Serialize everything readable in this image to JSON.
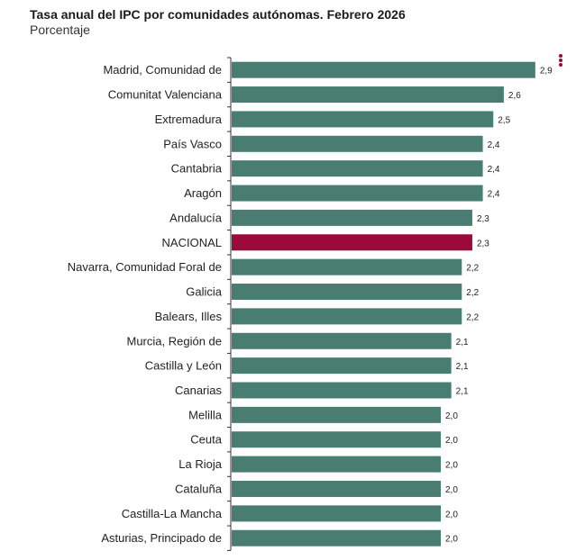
{
  "chart_data": {
    "type": "bar",
    "orientation": "horizontal",
    "title": "Tasa anual del IPC por comunidades autónomas. Febrero 2026",
    "subtitle": "Porcentaje",
    "categories": [
      "Madrid, Comunidad de",
      "Comunitat Valenciana",
      "Extremadura",
      "País Vasco",
      "Cantabria",
      "Aragón",
      "Andalucía",
      "NACIONAL",
      "Navarra, Comunidad Foral de",
      "Galicia",
      "Balears, Illes",
      "Murcia, Región de",
      "Castilla y León",
      "Canarias",
      "Melilla",
      "Ceuta",
      "La Rioja",
      "Cataluña",
      "Castilla-La Mancha",
      "Asturias, Principado de"
    ],
    "values": [
      2.9,
      2.6,
      2.5,
      2.4,
      2.4,
      2.4,
      2.3,
      2.3,
      2.2,
      2.2,
      2.2,
      2.1,
      2.1,
      2.1,
      2.0,
      2.0,
      2.0,
      2.0,
      2.0,
      2.0
    ],
    "value_labels": [
      "2,9",
      "2,6",
      "2,5",
      "2,4",
      "2,4",
      "2,4",
      "2,3",
      "2,3",
      "2,2",
      "2,2",
      "2,2",
      "2,1",
      "2,1",
      "2,1",
      "2,0",
      "2,0",
      "2,0",
      "2,0",
      "2,0",
      "2,0"
    ],
    "xlim": [
      0,
      3.3
    ],
    "grid": false,
    "colors": {
      "default": "#4a7d72",
      "highlight": "#9b0a3a"
    },
    "highlight_category": "NACIONAL"
  },
  "menu_icon": "more-vertical-icon"
}
